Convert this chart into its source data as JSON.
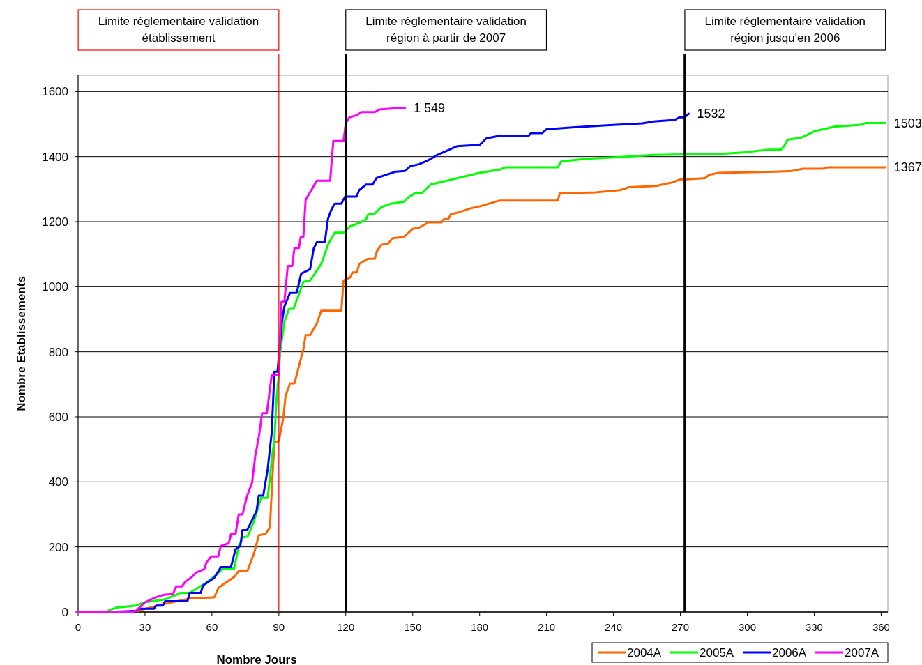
{
  "chart_data": {
    "type": "line",
    "xlabel": "Nombre Jours",
    "ylabel": "Nombre Etablissements",
    "xlim": [
      0,
      363
    ],
    "ylim": [
      0,
      1650
    ],
    "xticks": [
      0,
      30,
      60,
      90,
      120,
      150,
      180,
      210,
      240,
      270,
      300,
      330,
      360
    ],
    "yticks": [
      0,
      200,
      400,
      600,
      800,
      1000,
      1200,
      1400,
      1600
    ],
    "grid": "y",
    "legend": "bottom right",
    "marker": "none",
    "line_style": "solid",
    "series": [
      {
        "name": "2004A",
        "color": "#ff6600",
        "x": [
          0,
          20,
          27,
          38,
          51,
          61,
          63,
          70,
          72,
          76,
          79,
          81,
          84,
          86,
          87,
          88,
          90,
          92,
          93,
          95,
          97,
          101,
          102,
          104,
          107,
          109,
          118,
          119,
          122,
          123,
          125,
          126,
          130,
          133,
          134,
          136,
          139,
          141,
          146,
          150,
          153,
          157,
          163,
          164,
          166,
          167,
          172,
          176,
          180,
          185,
          189,
          215,
          216,
          232,
          243,
          247,
          259,
          266,
          270,
          273,
          281,
          283,
          287,
          313,
          320,
          325,
          334,
          336,
          362
        ],
        "values": [
          0,
          0,
          4,
          24,
          43,
          45,
          75,
          108,
          126,
          128,
          183,
          236,
          240,
          260,
          400,
          522,
          526,
          597,
          664,
          703,
          703,
          808,
          851,
          851,
          887,
          926,
          926,
          1019,
          1029,
          1044,
          1044,
          1070,
          1086,
          1086,
          1110,
          1129,
          1133,
          1149,
          1153,
          1178,
          1182,
          1198,
          1198,
          1208,
          1208,
          1222,
          1232,
          1241,
          1247,
          1257,
          1265,
          1265,
          1287,
          1290,
          1297,
          1306,
          1310,
          1320,
          1330,
          1330,
          1334,
          1344,
          1350,
          1354,
          1356,
          1363,
          1363,
          1367,
          1367
        ]
      },
      {
        "name": "2005A",
        "color": "#00ff00",
        "x": [
          0,
          13,
          14,
          17.5,
          26,
          30,
          39,
          46,
          50,
          57,
          62,
          65,
          70,
          72,
          74,
          76,
          79,
          82,
          85,
          86.8,
          88,
          89,
          90,
          90.5,
          92.5,
          94.6,
          96.6,
          101,
          104,
          109,
          112,
          115,
          119,
          122,
          126,
          129,
          130,
          133,
          136,
          140,
          146,
          148,
          151,
          154,
          158,
          180,
          189,
          191.5,
          215,
          216.5,
          227,
          243,
          258,
          273,
          285,
          299,
          309,
          315,
          316.5,
          318,
          324,
          326,
          330,
          334,
          339,
          351,
          353,
          362
        ],
        "values": [
          0,
          0,
          6,
          14,
          20,
          30,
          39,
          59,
          59,
          88,
          115,
          134,
          134,
          203,
          230,
          232,
          282,
          351,
          351,
          467,
          532,
          660,
          729,
          794,
          893,
          932,
          932,
          1015,
          1019,
          1070,
          1129,
          1166,
          1166,
          1186,
          1196,
          1206,
          1222,
          1225,
          1245,
          1255,
          1261,
          1275,
          1287,
          1287,
          1314,
          1350,
          1360,
          1367,
          1367,
          1385,
          1393,
          1399,
          1405,
          1407,
          1407,
          1413,
          1421,
          1421,
          1432,
          1452,
          1458,
          1464,
          1478,
          1484,
          1492,
          1498,
          1503,
          1503
        ]
      },
      {
        "name": "2006A",
        "color": "#0000ff",
        "x": [
          0,
          13,
          26,
          27,
          34,
          35,
          38,
          39,
          49,
          50,
          55,
          56,
          61,
          64,
          68.5,
          70.6,
          72.7,
          73.7,
          75.8,
          80,
          81,
          83,
          85,
          86.8,
          88,
          89.4,
          91.4,
          92.5,
          95,
          98,
          100,
          104,
          105.6,
          107,
          110.6,
          112,
          113.4,
          115,
          118,
          119.7,
          124.8,
          126,
          129,
          132,
          133.7,
          138,
          142.5,
          146.6,
          148.8,
          153,
          157,
          161,
          170,
          180,
          183,
          189,
          202,
          203,
          208,
          210,
          221.6,
          237,
          253,
          258,
          267.5,
          269.6,
          272,
          273.7
        ],
        "values": [
          0,
          0,
          3,
          10,
          10,
          20,
          20,
          33,
          33,
          59,
          59,
          82,
          105,
          138,
          138,
          193,
          203,
          252,
          252,
          311,
          358,
          358,
          440,
          552,
          739,
          739,
          893,
          940,
          981,
          981,
          1040,
          1054,
          1117,
          1137,
          1137,
          1208,
          1235,
          1255,
          1255,
          1277,
          1277,
          1297,
          1314,
          1314,
          1334,
          1344,
          1354,
          1356,
          1370,
          1377,
          1389,
          1405,
          1432,
          1436,
          1456,
          1464,
          1464,
          1472,
          1472,
          1484,
          1490,
          1496,
          1502,
          1508,
          1513,
          1521,
          1521,
          1532
        ]
      },
      {
        "name": "2007A",
        "color": "#ff00ff",
        "x": [
          0,
          24,
          26,
          30,
          34,
          38.4,
          42.5,
          44,
          46.6,
          48,
          51,
          53,
          56.6,
          57.5,
          59.7,
          62.8,
          64,
          67.5,
          68.6,
          70.6,
          72,
          73.7,
          75.8,
          78,
          79.4,
          81,
          82.5,
          84.6,
          86.8,
          90,
          91,
          92.5,
          94,
          96,
          97,
          99,
          99.8,
          101,
          102,
          107,
          113,
          114.4,
          119,
          120,
          121.6,
          124.8,
          127,
          133,
          135,
          142.5,
          146.6
        ],
        "values": [
          0,
          0,
          4,
          30,
          43,
          53,
          55,
          79,
          79,
          93,
          108,
          122,
          132,
          152,
          171,
          171,
          203,
          211,
          240,
          240,
          300,
          300,
          358,
          398,
          479,
          538,
          611,
          611,
          729,
          729,
          952,
          956,
          1064,
          1064,
          1119,
          1119,
          1153,
          1153,
          1267,
          1326,
          1326,
          1448,
          1448,
          1503,
          1521,
          1527,
          1537,
          1537,
          1545,
          1549,
          1549
        ]
      }
    ],
    "ref_lines": [
      {
        "axis": "x",
        "value": 90,
        "label": "Limite réglementaire validation établissement",
        "color": "#ff0000"
      },
      {
        "axis": "x",
        "value": 120,
        "label": "Limite réglementaire validation région à partir de 2007",
        "color": "#000000"
      },
      {
        "axis": "x",
        "value": 272,
        "label": "Limite réglementaire validation région jusqu'en 2006",
        "color": "#000000"
      }
    ],
    "annotations": [
      {
        "text": "1 549",
        "x": 146.6,
        "y": 1549
      },
      {
        "text": "1532",
        "x": 273.7,
        "y": 1532
      },
      {
        "text": "1503",
        "x": 362,
        "y": 1503
      },
      {
        "text": "1367",
        "x": 362,
        "y": 1367
      }
    ]
  }
}
